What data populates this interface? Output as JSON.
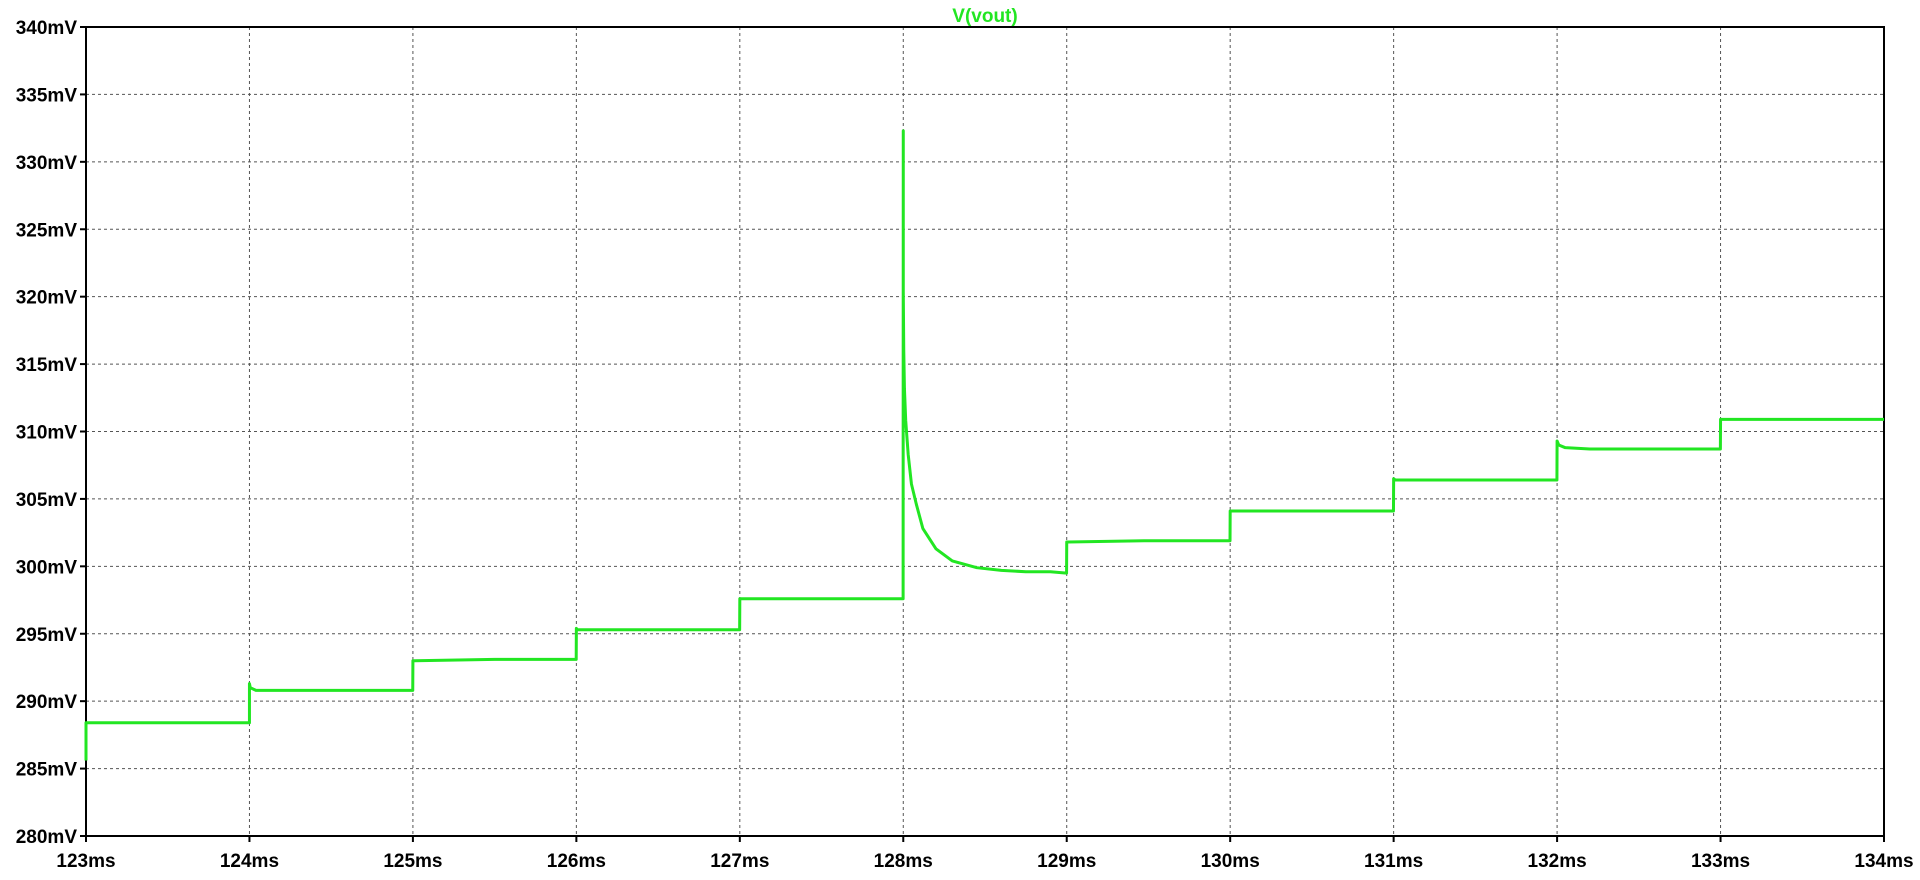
{
  "chart_data": {
    "type": "line",
    "title": "V(vout)",
    "xlabel": "",
    "ylabel": "",
    "xlim": [
      123,
      134
    ],
    "ylim": [
      280,
      340
    ],
    "x_unit": "ms",
    "y_unit": "mV",
    "x_ticks": [
      "123ms",
      "124ms",
      "125ms",
      "126ms",
      "127ms",
      "128ms",
      "129ms",
      "130ms",
      "131ms",
      "132ms",
      "133ms",
      "134ms"
    ],
    "y_ticks": [
      "340mV",
      "335mV",
      "330mV",
      "325mV",
      "320mV",
      "315mV",
      "310mV",
      "305mV",
      "300mV",
      "295mV",
      "290mV",
      "285mV",
      "280mV"
    ],
    "grid": true,
    "series": [
      {
        "name": "V(vout)",
        "color": "#22e622",
        "x": [
          123.0,
          123.0,
          123.002,
          124.0,
          124.0,
          124.005,
          124.04,
          124.1,
          124.5,
          124.999,
          125.0,
          125.01,
          125.5,
          125.999,
          126.0,
          126.005,
          126.05,
          126.5,
          126.999,
          127.0,
          127.01,
          127.5,
          127.999,
          128.0,
          128.0,
          128.003,
          128.007,
          128.015,
          128.03,
          128.05,
          128.08,
          128.12,
          128.2,
          128.3,
          128.45,
          128.6,
          128.75,
          128.9,
          128.999,
          129.0,
          129.01,
          129.5,
          129.999,
          130.0,
          130.01,
          130.5,
          130.999,
          131.0,
          131.01,
          131.05,
          131.5,
          131.999,
          132.0,
          132.01,
          132.05,
          132.2,
          132.5,
          132.999,
          133.0,
          133.01,
          133.05,
          133.2,
          133.5,
          134.0
        ],
        "y": [
          285.6,
          288.4,
          288.4,
          288.4,
          291.3,
          291.0,
          290.8,
          290.8,
          290.8,
          290.8,
          293.0,
          293.0,
          293.1,
          293.1,
          295.4,
          295.3,
          295.3,
          295.3,
          295.3,
          297.6,
          297.6,
          297.6,
          297.6,
          332.3,
          320.4,
          316.0,
          313.2,
          310.8,
          308.3,
          306.1,
          304.6,
          302.8,
          301.3,
          300.4,
          299.9,
          299.7,
          299.6,
          299.6,
          299.5,
          301.8,
          301.8,
          301.9,
          301.9,
          304.1,
          304.1,
          304.1,
          304.1,
          306.5,
          306.4,
          306.4,
          306.4,
          306.4,
          309.3,
          309.0,
          308.8,
          308.7,
          308.7,
          308.7,
          310.9,
          310.9,
          310.9,
          310.9,
          310.9,
          310.9
        ]
      }
    ]
  }
}
